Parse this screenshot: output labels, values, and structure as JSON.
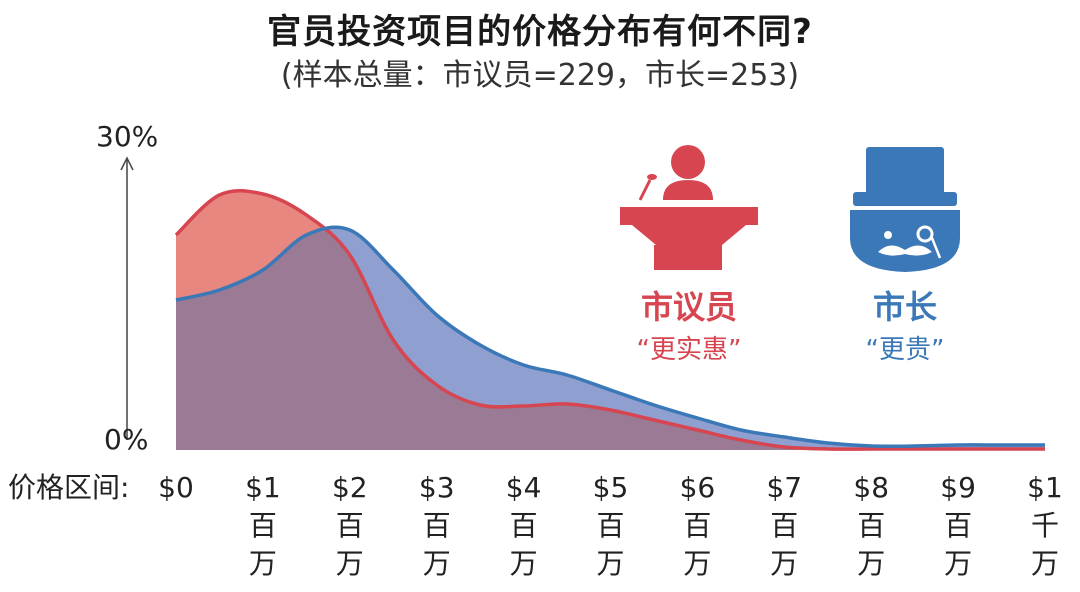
{
  "title": "官员投资项目的价格分布有何不同?",
  "subtitle": "(样本总量：市议员=229，市长=253)",
  "colors": {
    "council": "#d64550",
    "council_fill": "#e8877f",
    "mayor": "#3a78b8",
    "mayor_fill": "#8f9fcf",
    "overlap_fill": "#9a7a94"
  },
  "chart_data": {
    "type": "area",
    "ylim": [
      0,
      30
    ],
    "yticks": [
      "0%",
      "30%"
    ],
    "x_axis_label": "价格区间:",
    "x": [
      0,
      0.5,
      1,
      1.5,
      2,
      2.5,
      3,
      3.5,
      4,
      4.5,
      5,
      5.5,
      6,
      6.5,
      7,
      7.5,
      8,
      8.5,
      9,
      9.5,
      10
    ],
    "x_ticks": [
      {
        "value": 0,
        "line1": "$0",
        "line2": "",
        "line3": ""
      },
      {
        "value": 1,
        "line1": "$1",
        "line2": "百",
        "line3": "万"
      },
      {
        "value": 2,
        "line1": "$2",
        "line2": "百",
        "line3": "万"
      },
      {
        "value": 3,
        "line1": "$3",
        "line2": "百",
        "line3": "万"
      },
      {
        "value": 4,
        "line1": "$4",
        "line2": "百",
        "line3": "万"
      },
      {
        "value": 5,
        "line1": "$5",
        "line2": "百",
        "line3": "万"
      },
      {
        "value": 6,
        "line1": "$6",
        "line2": "百",
        "line3": "万"
      },
      {
        "value": 7,
        "line1": "$7",
        "line2": "百",
        "line3": "万"
      },
      {
        "value": 8,
        "line1": "$8",
        "line2": "百",
        "line3": "万"
      },
      {
        "value": 9,
        "line1": "$9",
        "line2": "百",
        "line3": "万"
      },
      {
        "value": 10,
        "line1": "$1",
        "line2": "千",
        "line3": "万"
      }
    ],
    "series": [
      {
        "name": "市议员",
        "tagline": "“更实惠”",
        "values": [
          21.5,
          25.5,
          25.6,
          23.5,
          19.5,
          11.0,
          6.5,
          4.5,
          4.4,
          4.6,
          4.0,
          3.0,
          2.0,
          1.0,
          0.3,
          0.1,
          0.1,
          0.1,
          0.1,
          0.1,
          0.1
        ]
      },
      {
        "name": "市长",
        "tagline": "“更贵”",
        "values": [
          15.0,
          16.0,
          18.0,
          21.5,
          22.0,
          18.0,
          13.5,
          10.5,
          8.5,
          7.5,
          6.0,
          4.5,
          3.2,
          2.0,
          1.3,
          0.7,
          0.4,
          0.4,
          0.5,
          0.5,
          0.5
        ]
      }
    ]
  },
  "icons": {
    "council": "podium-speaker-icon",
    "mayor": "top-hat-mustache-icon"
  }
}
